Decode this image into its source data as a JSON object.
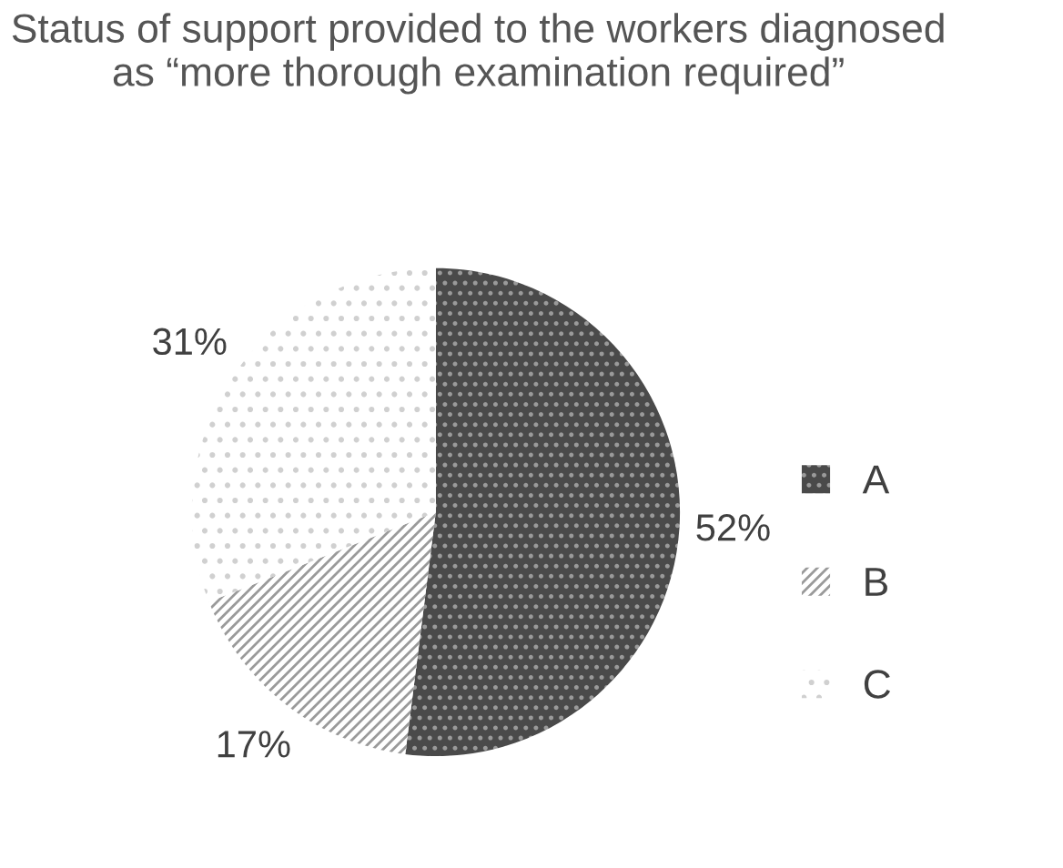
{
  "chart_data": {
    "type": "pie",
    "title": "Status of support provided to the workers diagnosed as “more thorough examination required”",
    "categories": [
      "A",
      "B",
      "C"
    ],
    "values": [
      52,
      17,
      31
    ],
    "colors": [
      "#4a4a4a",
      "#9a9a9a",
      "#d0d0d0"
    ],
    "value_labels": [
      "52%",
      "17%",
      "31%"
    ],
    "legend": "right"
  }
}
